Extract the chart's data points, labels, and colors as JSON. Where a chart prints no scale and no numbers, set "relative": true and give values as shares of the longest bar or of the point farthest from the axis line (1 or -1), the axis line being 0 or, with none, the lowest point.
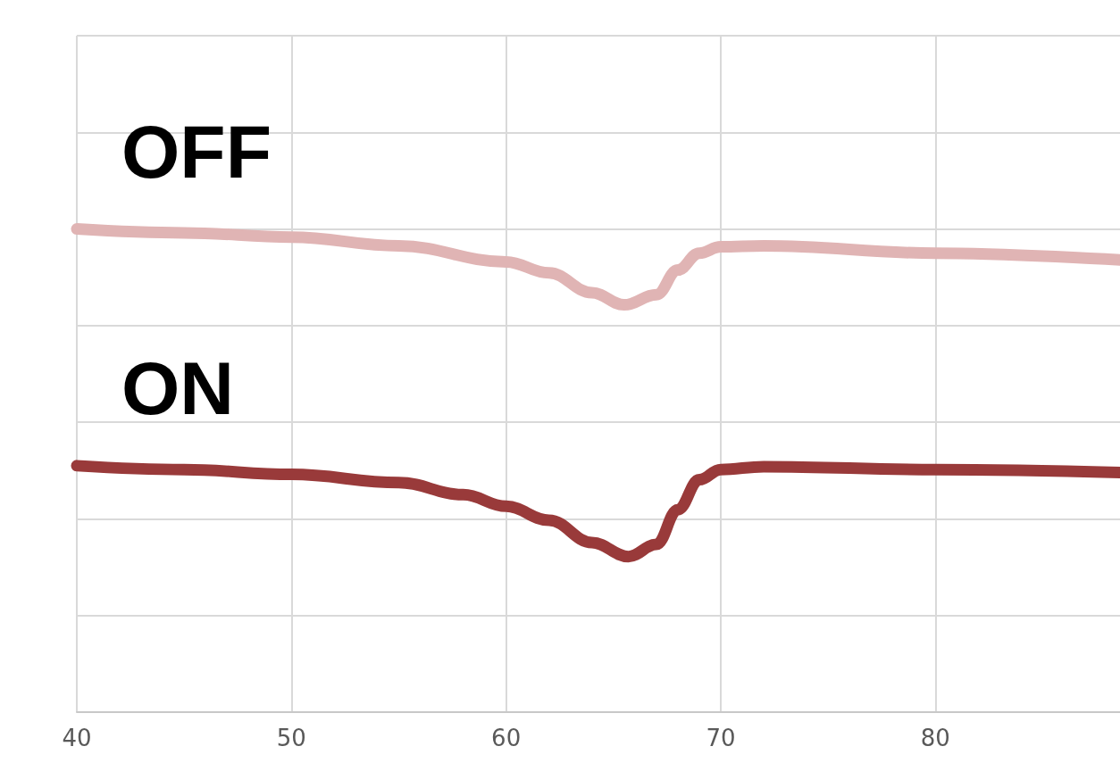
{
  "chart_data": {
    "type": "line",
    "relative": true,
    "xlim": [
      40,
      88.6
    ],
    "xticks": [
      40,
      50,
      60,
      70,
      80
    ],
    "grid": true,
    "legend": false,
    "marker": "none",
    "line_style": "solid",
    "series": [
      {
        "name": "OFF",
        "color": "#e0b4b4",
        "x": [
          40,
          45,
          50,
          55,
          60,
          62,
          64,
          65.5,
          67,
          68,
          69,
          70,
          72,
          80,
          88.6
        ],
        "values": [
          1,
          0.992,
          0.983,
          0.965,
          0.932,
          0.909,
          0.868,
          0.843,
          0.864,
          0.915,
          0.95,
          0.963,
          0.965,
          0.95,
          0.936
        ]
      },
      {
        "name": "ON",
        "color": "#993a3a",
        "x": [
          40,
          45,
          50,
          55,
          58,
          60,
          62,
          64,
          65.7,
          67,
          68,
          69,
          70,
          72,
          80,
          88.6
        ],
        "values": [
          0.51,
          0.502,
          0.492,
          0.475,
          0.45,
          0.426,
          0.397,
          0.351,
          0.322,
          0.347,
          0.419,
          0.481,
          0.502,
          0.508,
          0.502,
          0.496
        ]
      }
    ]
  }
}
